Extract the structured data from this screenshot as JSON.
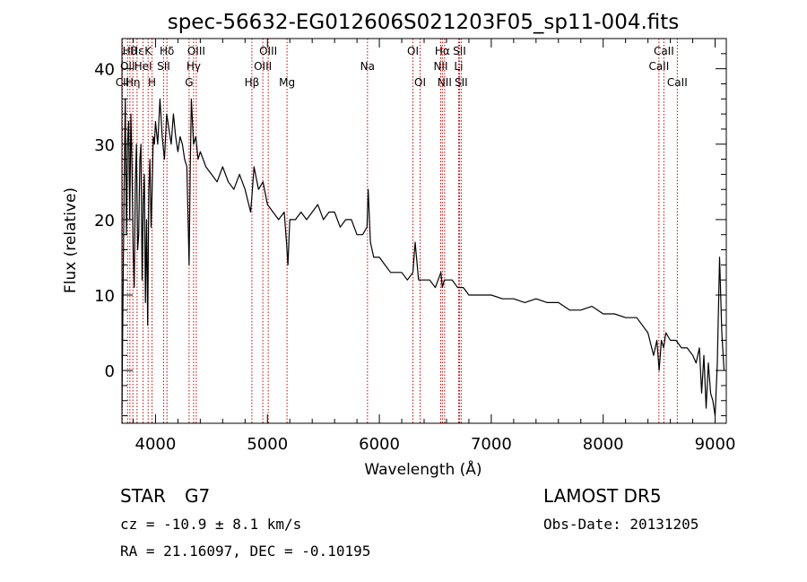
{
  "chart_data": {
    "type": "line",
    "title": "spec-56632-EG012606S021203F05_sp11-004.fits",
    "xlabel": "Wavelength (Å)",
    "ylabel": "Flux (relative)",
    "xlim": [
      3700,
      9100
    ],
    "ylim": [
      -7,
      44
    ],
    "xticks": [
      4000,
      5000,
      6000,
      7000,
      8000,
      9000
    ],
    "yticks": [
      0,
      10,
      20,
      30,
      40
    ],
    "grid": false,
    "series": [
      {
        "color": "#000000",
        "x": [
          3700,
          3710,
          3720,
          3730,
          3740,
          3750,
          3760,
          3770,
          3780,
          3790,
          3800,
          3810,
          3820,
          3830,
          3840,
          3850,
          3860,
          3870,
          3880,
          3890,
          3900,
          3910,
          3920,
          3930,
          3940,
          3950,
          3960,
          3970,
          3980,
          3990,
          4000,
          4020,
          4040,
          4060,
          4080,
          4100,
          4120,
          4140,
          4160,
          4180,
          4200,
          4220,
          4240,
          4260,
          4280,
          4300,
          4310,
          4320,
          4340,
          4360,
          4380,
          4400,
          4450,
          4500,
          4550,
          4600,
          4650,
          4700,
          4750,
          4800,
          4850,
          4861,
          4880,
          4920,
          4960,
          5000,
          5050,
          5100,
          5150,
          5170,
          5183,
          5200,
          5250,
          5300,
          5350,
          5400,
          5450,
          5500,
          5550,
          5600,
          5650,
          5700,
          5750,
          5800,
          5850,
          5890,
          5900,
          5920,
          5950,
          6000,
          6050,
          6100,
          6150,
          6200,
          6250,
          6300,
          6320,
          6350,
          6400,
          6450,
          6500,
          6550,
          6563,
          6580,
          6600,
          6650,
          6700,
          6750,
          6800,
          6900,
          7000,
          7100,
          7200,
          7300,
          7400,
          7500,
          7600,
          7700,
          7800,
          7900,
          8000,
          8100,
          8200,
          8300,
          8400,
          8450,
          8480,
          8500,
          8520,
          8540,
          8560,
          8600,
          8650,
          8700,
          8750,
          8800,
          8830,
          8860,
          8880,
          8900,
          8920,
          8940,
          8960,
          8980,
          9000,
          9020,
          9040,
          9060,
          9080
        ],
        "y": [
          -5,
          10,
          25,
          36,
          18,
          30,
          33,
          20,
          34,
          27,
          16,
          11,
          25,
          30,
          16,
          18,
          28,
          30,
          12,
          22,
          26,
          9,
          20,
          6,
          24,
          28,
          19,
          24,
          31,
          30,
          33,
          30,
          36,
          31,
          28,
          34,
          32,
          30,
          34,
          31,
          29,
          31,
          30,
          28,
          27,
          14,
          26,
          36,
          30,
          31,
          28,
          29,
          27,
          26,
          25,
          27,
          25,
          24,
          26,
          24,
          21,
          23,
          27,
          24,
          25,
          22,
          21,
          20,
          21,
          17,
          14,
          20,
          20,
          21,
          20,
          21,
          22,
          20,
          21,
          21,
          19,
          20,
          20,
          18,
          18,
          19,
          24,
          17,
          15,
          15,
          14,
          13,
          13,
          13,
          12,
          13,
          17,
          12,
          12,
          12,
          11,
          13,
          11,
          12,
          12,
          12,
          11,
          11,
          10,
          10,
          10,
          9.5,
          9.5,
          9,
          9.5,
          9,
          9,
          8,
          8,
          8.5,
          7.5,
          7.5,
          7,
          7,
          5,
          2,
          4,
          0,
          4,
          3,
          5,
          4,
          4,
          3,
          3,
          2,
          1,
          3,
          -3,
          2,
          -5,
          1,
          -3,
          -4,
          -6,
          1,
          15,
          5,
          0
        ]
      }
    ],
    "lines": [
      {
        "wl": 3704,
        "labels": [
          {
            "row": 2,
            "text": "CII"
          }
        ]
      },
      {
        "wl": 3750,
        "labels": [
          {
            "row": 1,
            "text": "OII"
          }
        ]
      },
      {
        "wl": 3771,
        "labels": [
          {
            "row": 0,
            "text": "Hθ"
          }
        ]
      },
      {
        "wl": 3798,
        "labels": [
          {
            "row": 2,
            "text": "Hη"
          }
        ]
      },
      {
        "wl": 3835,
        "labels": [
          {
            "row": 0,
            "text": "Hε"
          }
        ]
      },
      {
        "wl": 3889,
        "labels": [
          {
            "row": 1,
            "text": "HeI"
          }
        ]
      },
      {
        "wl": 3934,
        "labels": [
          {
            "row": 0,
            "text": "K"
          }
        ]
      },
      {
        "wl": 3969,
        "labels": [
          {
            "row": 2,
            "text": "H"
          }
        ]
      },
      {
        "wl": 4072,
        "labels": [
          {
            "row": 1,
            "text": "SII"
          }
        ]
      },
      {
        "wl": 4102,
        "labels": [
          {
            "row": 0,
            "text": "Hδ"
          }
        ]
      },
      {
        "wl": 4300,
        "labels": [
          {
            "row": 2,
            "text": "G"
          }
        ]
      },
      {
        "wl": 4340,
        "labels": [
          {
            "row": 1,
            "text": "Hγ"
          }
        ]
      },
      {
        "wl": 4364,
        "labels": [
          {
            "row": 0,
            "text": "OIII"
          }
        ]
      },
      {
        "wl": 4861,
        "labels": [
          {
            "row": 2,
            "text": "Hβ"
          }
        ]
      },
      {
        "wl": 4959,
        "labels": [
          {
            "row": 1,
            "text": "OIII"
          }
        ]
      },
      {
        "wl": 5007,
        "labels": [
          {
            "row": 0,
            "text": "OIII"
          }
        ]
      },
      {
        "wl": 5175,
        "labels": [
          {
            "row": 2,
            "text": "Mg"
          }
        ]
      },
      {
        "wl": 5894,
        "labels": [
          {
            "row": 1,
            "text": "Na"
          }
        ]
      },
      {
        "wl": 6300,
        "labels": [
          {
            "row": 0,
            "text": "OI"
          }
        ]
      },
      {
        "wl": 6364,
        "labels": [
          {
            "row": 2,
            "text": "OI"
          }
        ]
      },
      {
        "wl": 6548,
        "labels": [
          {
            "row": 1,
            "text": "NII"
          }
        ]
      },
      {
        "wl": 6563,
        "labels": [
          {
            "row": 0,
            "text": "Hα"
          }
        ]
      },
      {
        "wl": 6583,
        "labels": [
          {
            "row": 2,
            "text": "NII"
          }
        ]
      },
      {
        "wl": 6708,
        "labels": [
          {
            "row": 1,
            "text": "Li"
          }
        ]
      },
      {
        "wl": 6716,
        "labels": [
          {
            "row": 0,
            "text": "SII"
          }
        ]
      },
      {
        "wl": 6731,
        "labels": [
          {
            "row": 2,
            "text": "SII"
          }
        ]
      },
      {
        "wl": 8498,
        "labels": [
          {
            "row": 1,
            "text": "CaII"
          }
        ]
      },
      {
        "wl": 8542,
        "labels": [
          {
            "row": 0,
            "text": "CaII"
          }
        ]
      },
      {
        "wl": 8662,
        "labels": [
          {
            "row": 2,
            "text": "CaII"
          }
        ]
      }
    ]
  },
  "info": {
    "object_class": "STAR",
    "subclass": "G7",
    "survey": "LAMOST DR5",
    "cz": "cz = -10.9 ± 8.1 km/s",
    "obs_date": "Obs-Date: 20131205",
    "coords": "RA =  21.16097, DEC =  -0.10195"
  }
}
